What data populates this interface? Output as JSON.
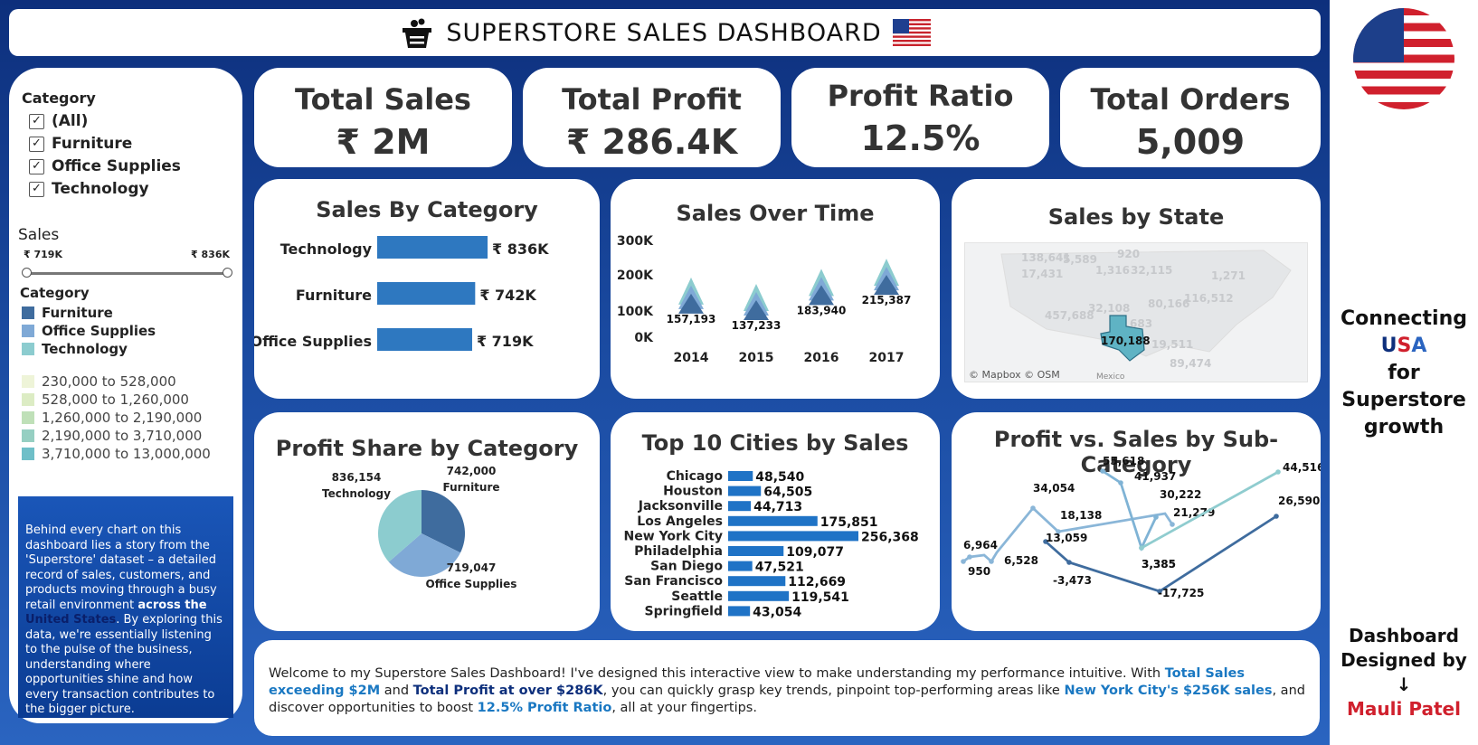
{
  "header": {
    "title": "SUPERSTORE SALES DASHBOARD"
  },
  "kpis": [
    {
      "label": "Total Sales",
      "value": "₹ 2M"
    },
    {
      "label": "Total Profit",
      "value": "₹ 286.4K"
    },
    {
      "label": "Profit Ratio",
      "value": "12.5%"
    },
    {
      "label": "Total Orders",
      "value": "5,009"
    }
  ],
  "sidebar": {
    "filter_title": "Category",
    "filter_options": [
      "(All)",
      "Furniture",
      "Office Supplies",
      "Technology"
    ],
    "sales_title": "Sales",
    "slider_min": "₹ 719K",
    "slider_max": "₹ 836K",
    "legend_title": "Category",
    "legend_items": [
      {
        "label": "Furniture",
        "color": "#3f6c9e"
      },
      {
        "label": "Office Supplies",
        "color": "#7fa9d6"
      },
      {
        "label": "Technology",
        "color": "#8ccccf"
      }
    ],
    "map_ranges": [
      {
        "label": "230,000 to 528,000",
        "color": "#eef4d8"
      },
      {
        "label": "528,000 to 1,260,000",
        "color": "#dcecc4"
      },
      {
        "label": "1,260,000 to 2,190,000",
        "color": "#bfe0b8"
      },
      {
        "label": "2,190,000 to 3,710,000",
        "color": "#96cfc2"
      },
      {
        "label": "3,710,000 to 13,000,000",
        "color": "#6fbfc8"
      }
    ],
    "story": {
      "part1": "Behind every chart on this dashboard lies a story from the 'Superstore' dataset – a detailed record of sales, customers, and products moving through a busy retail environment ",
      "bold": "across the ",
      "highlight": "United States",
      "part2": ". By exploring this data, we're essentially listening to the pulse of the business, understanding where opportunities shine and how every transaction contributes to the bigger picture."
    }
  },
  "panels": {
    "sales_by_category": "Sales By Category",
    "sales_over_time": "Sales Over Time",
    "sales_by_state": "Sales by State",
    "profit_share": "Profit Share by Category",
    "top_cities": "Top 10 Cities by Sales",
    "profit_vs_sales": "Profit vs. Sales by Sub-Category"
  },
  "map": {
    "credit": "© Mapbox © OSM",
    "country_label": "Mexico",
    "state_labels": [
      "138,641",
      "5,589",
      "920",
      "17,431",
      "1,316",
      "32,115",
      "1,271",
      "116,512",
      "80,166",
      "457,688",
      "32,108",
      "683",
      "19,511",
      "89,474"
    ],
    "highlight_label": "170,188"
  },
  "footer": {
    "t1": "Welcome to my Superstore Sales Dashboard! I've designed this interactive view to make understanding my performance intuitive. With ",
    "h1": "Total Sales exceeding $2M",
    "t2": " and ",
    "h2": "Total Profit at over $286K",
    "t3": ", you can quickly grasp key trends, pinpoint top-performing areas like ",
    "h3": "New York City's $256K sales",
    "t4": ", and discover opportunities to boost ",
    "h4": "12.5% Profit Ratio",
    "t5": ", all at your fingertips."
  },
  "right": {
    "connecting": [
      "Connecting",
      "for",
      "Superstore",
      "growth"
    ],
    "usa_u": "U",
    "usa_s": "S",
    "usa_a": "A",
    "designed": [
      "Dashboard",
      "Designed by",
      "↓"
    ],
    "author": "Mauli Patel"
  },
  "chart_data": [
    {
      "type": "bar",
      "title": "Sales By Category",
      "categories": [
        "Technology",
        "Furniture",
        "Office Supplies"
      ],
      "values": [
        836000,
        742000,
        719000
      ],
      "labels": [
        "₹ 836K",
        "₹ 742K",
        "₹ 719K"
      ],
      "color": "#2e78c0"
    },
    {
      "type": "area",
      "title": "Sales Over Time",
      "categories": [
        "2014",
        "2015",
        "2016",
        "2017"
      ],
      "totals": [
        157193,
        137233,
        183940,
        215387
      ],
      "total_labels": [
        "157,193",
        "137,233",
        "183,940",
        "215,387"
      ],
      "yticks": [
        "300K",
        "200K",
        "100K",
        "0K"
      ],
      "ylim": [
        0,
        300000
      ]
    },
    {
      "type": "pie",
      "title": "Profit Share by Category",
      "slices": [
        {
          "name": "Furniture",
          "value": 742000,
          "label": "742,000",
          "color": "#3f6c9e"
        },
        {
          "name": "Office Supplies",
          "value": 719047,
          "label": "719,047",
          "color": "#7fa9d6"
        },
        {
          "name": "Technology",
          "value": 836154,
          "label": "836,154",
          "color": "#8ccccf"
        }
      ]
    },
    {
      "type": "bar",
      "title": "Top 10 Cities by Sales",
      "categories": [
        "Chicago",
        "Houston",
        "Jacksonville",
        "Los Angeles",
        "New York City",
        "Philadelphia",
        "San Diego",
        "San Francisco",
        "Seattle",
        "Springfield"
      ],
      "values": [
        48540,
        64505,
        44713,
        175851,
        256368,
        109077,
        47521,
        112669,
        119541,
        43054
      ],
      "labels": [
        "48,540",
        "64,505",
        "44,713",
        "175,851",
        "256,368",
        "109,077",
        "47,521",
        "112,669",
        "119,541",
        "43,054"
      ],
      "color": "#1f73c6"
    },
    {
      "type": "line",
      "title": "Profit vs. Sales by Sub-Category",
      "series": [
        {
          "color": "#8ab6d8",
          "points": [
            [
              "6,964",
              6964
            ],
            [
              "950",
              950
            ],
            [
              "6,528",
              6528
            ],
            [
              "34,054",
              34054
            ],
            [
              "18,138",
              18138
            ],
            [
              "21,279",
              21279
            ]
          ]
        },
        {
          "color": "#7fb3d5",
          "points": [
            [
              "55,618",
              55618
            ],
            [
              "41,937",
              41937
            ],
            [
              "3,385",
              3385
            ],
            [
              "30,222",
              30222
            ]
          ]
        },
        {
          "color": "#8fcccf",
          "points": [
            [
              "3,385",
              3385
            ],
            [
              "44,516",
              44516
            ]
          ]
        },
        {
          "color": "#3f6c9e",
          "points": [
            [
              "13,059",
              13059
            ],
            [
              "-3,473",
              -3473
            ],
            [
              "-17,725",
              -17725
            ],
            [
              "26,590",
              26590
            ]
          ]
        }
      ]
    }
  ]
}
